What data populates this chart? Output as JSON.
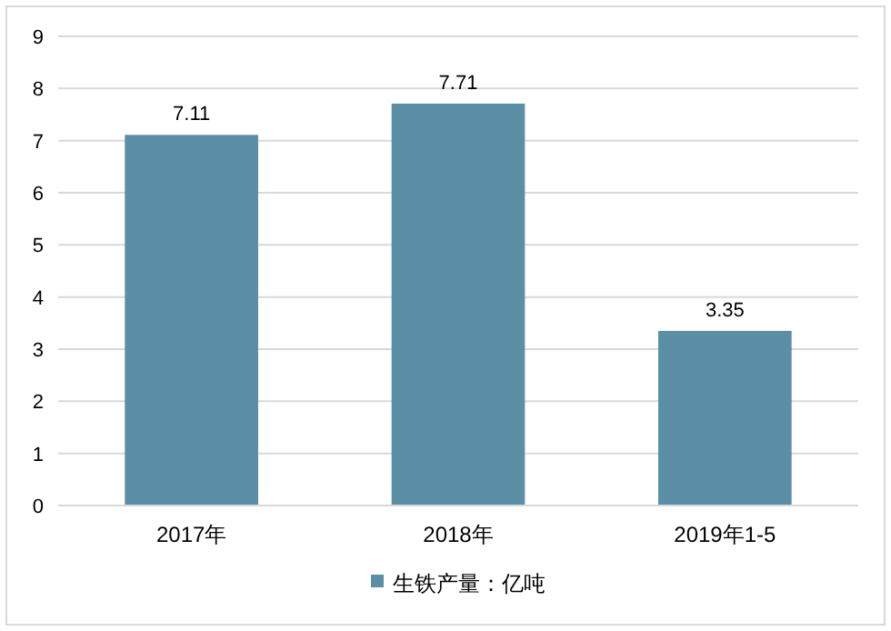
{
  "chart_data": {
    "type": "bar",
    "categories": [
      "2017年",
      "2018年",
      "2019年1-5"
    ],
    "series": [
      {
        "name": "生铁产量：亿吨",
        "color": "#5b8fa6",
        "values": [
          7.11,
          7.71,
          3.35
        ]
      }
    ],
    "ylim": [
      0,
      9
    ],
    "yticks": [
      0,
      1,
      2,
      3,
      4,
      5,
      6,
      7,
      8,
      9
    ],
    "grid": "y",
    "legend": "bottom",
    "data_labels": true
  }
}
